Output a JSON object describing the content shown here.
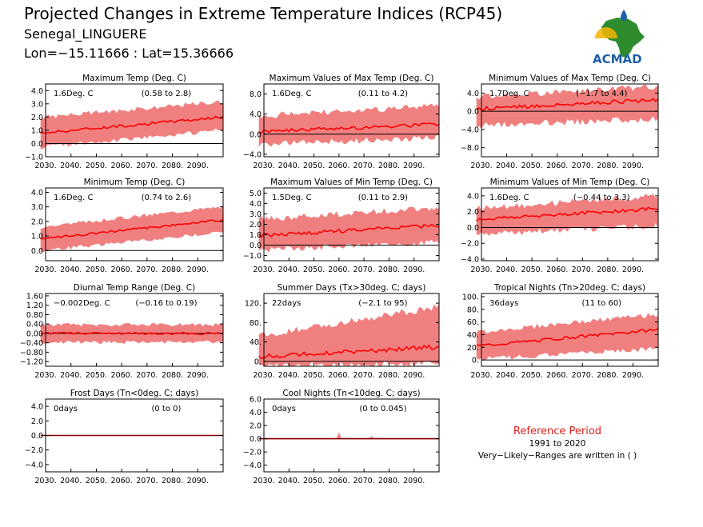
{
  "header": {
    "title": "Projected Changes in Extreme Temperature Indices (RCP45)",
    "station": "Senegal_LINGUERE",
    "coords": "Lon=−15.11666 : Lat=15.36666"
  },
  "logo": {
    "text": "ACMAD"
  },
  "reference": {
    "title": "Reference Period",
    "period": "1991 to 2020",
    "note": "Very−Likely−Ranges are written in ( )"
  },
  "colors": {
    "band": "#f08080",
    "line": "#ff0000",
    "zero": "#000000",
    "frame": "#000000",
    "cool_line": "#8b0000"
  },
  "chart_data": [
    {
      "type": "area",
      "title": "Maximum Temp (Deg. C)",
      "stat": "1.6Deg. C",
      "range": "(0.58 to 2.8)",
      "x_ticks": [
        "2030.",
        "2040.",
        "2050.",
        "2060.",
        "2070.",
        "2080.",
        "2090."
      ],
      "xlim": [
        2030,
        2100
      ],
      "y_ticks": [
        "4.0",
        "3.0",
        "2.0",
        "1.0",
        "0.0",
        "−1.0"
      ],
      "ylim": [
        -1.0,
        4.5
      ],
      "mean_start": 0.8,
      "mean_end": 2.0,
      "low_start": -0.1,
      "low_end": 1.2,
      "high_start": 1.8,
      "high_end": 3.0,
      "noise": 0.35
    },
    {
      "type": "area",
      "title": "Maximum Values of Max Temp (Deg. C)",
      "stat": "1.6Deg. C",
      "range": "(0.11 to 4.2)",
      "x_ticks": [
        "2030.",
        "2040.",
        "2050.",
        "2060.",
        "2070.",
        "2080.",
        "2090."
      ],
      "xlim": [
        2030,
        2100
      ],
      "y_ticks": [
        "8.0",
        "4.0",
        "0.0",
        "−4.0"
      ],
      "ylim": [
        -4.5,
        10
      ],
      "mean_start": 0.5,
      "mean_end": 2.0,
      "low_start": -1.5,
      "low_end": 0.0,
      "high_start": 3.0,
      "high_end": 5.0,
      "noise": 1.3
    },
    {
      "type": "area",
      "title": "Minimum Values of Max Temp (Deg. C)",
      "stat": "1.7Deg. C",
      "range": "(−1.7 to 4.4)",
      "x_ticks": [
        "2030.",
        "2040.",
        "2050.",
        "2060.",
        "2070.",
        "2080.",
        "2090."
      ],
      "xlim": [
        2030,
        2100
      ],
      "y_ticks": [
        "4.0",
        "0.0",
        "−4.0",
        "−8.0"
      ],
      "ylim": [
        -10,
        6
      ],
      "mean_start": 0.5,
      "mean_end": 2.5,
      "low_start": -2.5,
      "low_end": -1.0,
      "high_start": 2.5,
      "high_end": 4.8,
      "noise": 1.4
    },
    {
      "type": "area",
      "title": "Minimum Temp (Deg. C)",
      "stat": "1.6Deg. C",
      "range": "(0.74 to 2.6)",
      "x_ticks": [
        "2030.",
        "2040.",
        "2050.",
        "2060.",
        "2070.",
        "2080.",
        "2090."
      ],
      "xlim": [
        2030,
        2100
      ],
      "y_ticks": [
        "4.0",
        "3.0",
        "2.0",
        "1.0",
        "0.0"
      ],
      "ylim": [
        -0.7,
        4.3
      ],
      "mean_start": 0.8,
      "mean_end": 2.1,
      "low_start": 0.1,
      "low_end": 1.4,
      "high_start": 1.5,
      "high_end": 2.9,
      "noise": 0.25
    },
    {
      "type": "area",
      "title": "Maximum Values of Min Temp (Deg. C)",
      "stat": "1.5Deg. C",
      "range": "(0.11 to 2.9)",
      "x_ticks": [
        "2030.",
        "2040.",
        "2050.",
        "2060.",
        "2070.",
        "2080.",
        "2090."
      ],
      "xlim": [
        2030,
        2100
      ],
      "y_ticks": [
        "5.0",
        "4.0",
        "3.0",
        "2.0",
        "1.0",
        "0.0",
        "−1.0"
      ],
      "ylim": [
        -1.5,
        5.5
      ],
      "mean_start": 0.9,
      "mean_end": 1.9,
      "low_start": -0.2,
      "low_end": 0.6,
      "high_start": 2.2,
      "high_end": 3.3,
      "noise": 0.6
    },
    {
      "type": "area",
      "title": "Minimum Values of Min Temp (Deg. C)",
      "stat": "1.6Deg. C",
      "range": "(−0.44 to 3.3)",
      "x_ticks": [
        "2030.",
        "2040.",
        "2050.",
        "2060.",
        "2070.",
        "2080.",
        "2090."
      ],
      "xlim": [
        2030,
        2100
      ],
      "y_ticks": [
        "4.0",
        "2.0",
        "0.0",
        "−2.0",
        "−4.0"
      ],
      "ylim": [
        -4.2,
        5
      ],
      "mean_start": 1.0,
      "mean_end": 2.4,
      "low_start": -0.5,
      "low_end": 0.6,
      "high_start": 2.0,
      "high_end": 3.6,
      "noise": 0.8
    },
    {
      "type": "area",
      "title": "Diurnal Temp Range (Deg. C)",
      "stat": "−0.002Deg. C",
      "range": "(−0.16 to 0.19)",
      "x_ticks": [
        "2030.",
        "2040.",
        "2050.",
        "2060.",
        "2070.",
        "2080.",
        "2090."
      ],
      "xlim": [
        2030,
        2100
      ],
      "y_ticks": [
        "1.60",
        "1.20",
        "0.80",
        "0.40",
        "0.00",
        "−0.40",
        "−0.80",
        "−1.20"
      ],
      "ylim": [
        -1.4,
        1.7
      ],
      "mean_start": 0.0,
      "mean_end": 0.0,
      "low_start": -0.3,
      "low_end": -0.3,
      "high_start": 0.3,
      "high_end": 0.3,
      "noise": 0.15
    },
    {
      "type": "area",
      "title": "Summer Days (Tx>30deg. C; days)",
      "stat": "22days",
      "range": "(−2.1 to 95)",
      "x_ticks": [
        "2030.",
        "2040.",
        "2050.",
        "2060.",
        "2070.",
        "2080.",
        "2090."
      ],
      "xlim": [
        2030,
        2100
      ],
      "y_ticks": [
        "120.",
        "80.",
        "40.",
        "0."
      ],
      "ylim": [
        -10,
        140
      ],
      "mean_start": 10,
      "mean_end": 30,
      "low_start": -3,
      "low_end": 2,
      "high_start": 45,
      "high_end": 105,
      "noise": 15
    },
    {
      "type": "area",
      "title": "Tropical Nights (Tn>20deg. C; days)",
      "stat": "36days",
      "range": "(11 to 60)",
      "x_ticks": [
        "2030.",
        "2040.",
        "2050.",
        "2060.",
        "2070.",
        "2080.",
        "2090."
      ],
      "xlim": [
        2030,
        2100
      ],
      "y_ticks": [
        "100.",
        "80.",
        "60.",
        "40.",
        "20.",
        "0."
      ],
      "ylim": [
        -10,
        105
      ],
      "mean_start": 22,
      "mean_end": 48,
      "low_start": 5,
      "low_end": 22,
      "high_start": 40,
      "high_end": 68,
      "noise": 8
    },
    {
      "type": "area",
      "title": "Frost Days (Tn<0deg. C; days)",
      "stat": "0days",
      "range": "(0 to 0)",
      "x_ticks": [
        "2030.",
        "2040.",
        "2050.",
        "2060.",
        "2070.",
        "2080.",
        "2090."
      ],
      "xlim": [
        2030,
        2100
      ],
      "y_ticks": [
        "4.0",
        "2.0",
        "0.0",
        "−2.0",
        "−4.0"
      ],
      "ylim": [
        -5,
        5
      ],
      "mean_start": 0,
      "mean_end": 0,
      "low_start": 0,
      "low_end": 0,
      "high_start": 0,
      "high_end": 0,
      "noise": 0
    },
    {
      "type": "area",
      "title": "Cool Nights (Tn<10deg. C; days)",
      "stat": "0days",
      "range": "(0 to 0.045)",
      "x_ticks": [
        "2030.",
        "2040.",
        "2050.",
        "2060.",
        "2070.",
        "2080.",
        "2090."
      ],
      "xlim": [
        2030,
        2100
      ],
      "y_ticks": [
        "6.0",
        "4.0",
        "2.0",
        "0.0",
        "−2.0",
        "−4.0"
      ],
      "ylim": [
        -5,
        6
      ],
      "mean_start": 0,
      "mean_end": 0,
      "low_start": 0,
      "low_end": 0,
      "high_start": 0,
      "high_end": 0,
      "noise": 0,
      "spikes": [
        [
          2060,
          1.0
        ],
        [
          2073,
          0.4
        ]
      ]
    }
  ]
}
